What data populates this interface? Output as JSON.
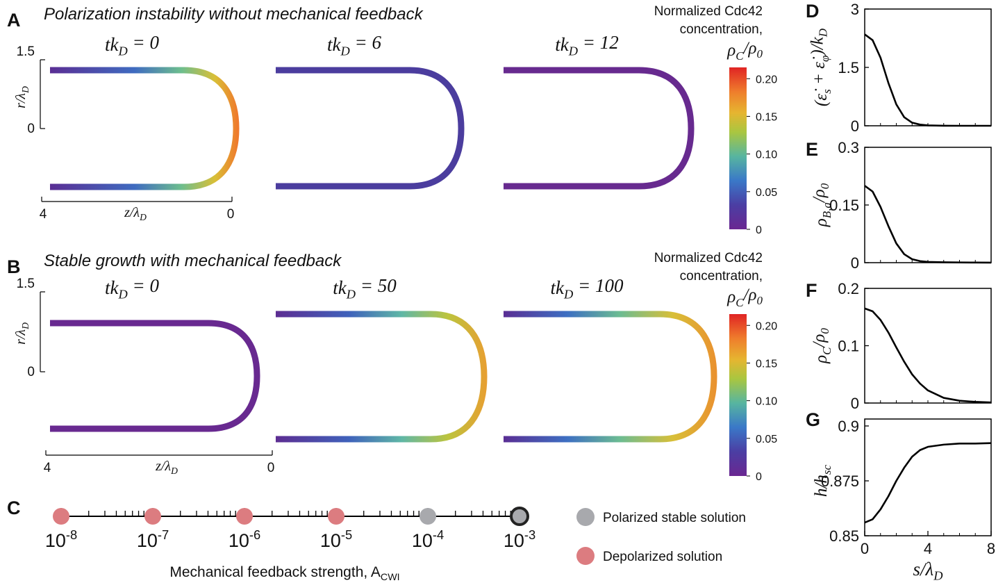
{
  "panel_a": {
    "letter": "A",
    "title": "Polarization instability without mechanical feedback",
    "snapshots": [
      [
        "tk",
        "D",
        " = 0"
      ],
      [
        "tk",
        "D",
        " = 6"
      ],
      [
        "tk",
        "D",
        " = 12"
      ]
    ],
    "r_label": [
      "r/λ",
      "D"
    ],
    "r_ticks": [
      1.5,
      0
    ],
    "z_label": [
      "z/λ",
      "D"
    ],
    "z_ticks": [
      4,
      0
    ],
    "colorbar": {
      "title": [
        "Normalized Cdc42",
        "concentration,"
      ],
      "label": [
        "ρ",
        "C",
        "/ρ",
        "0"
      ],
      "clim": [
        0,
        0.215
      ],
      "ticks": [
        0,
        0.05,
        {
          "value": 0.1,
          "label": "0.10"
        },
        0.15,
        {
          "value": 0.2,
          "label": "0.20"
        }
      ]
    }
  },
  "panel_b": {
    "letter": "B",
    "title": "Stable growth with mechanical feedback",
    "snapshots": [
      [
        "tk",
        "D",
        " = 0"
      ],
      [
        "tk",
        "D",
        " = 50"
      ],
      [
        "tk",
        "D",
        " = 100"
      ]
    ],
    "r_label": [
      "r/λ",
      "D"
    ],
    "r_ticks": [
      1.5,
      0
    ],
    "z_label": [
      "z/λ",
      "D"
    ],
    "z_ticks": [
      4,
      0
    ],
    "colorbar": {
      "title": [
        "Normalized Cdc42",
        "concentration,"
      ],
      "label": [
        "ρ",
        "C",
        "/ρ",
        "0"
      ],
      "clim": [
        0,
        0.215
      ],
      "ticks": [
        0,
        0.05,
        {
          "value": 0.1,
          "label": "0.10"
        },
        0.15,
        {
          "value": 0.2,
          "label": "0.20"
        }
      ]
    }
  },
  "chart_data": [
    {
      "type": "scatter",
      "letter": "C",
      "xlabel": [
        "Mechanical feedback strength, A",
        "CWI"
      ],
      "log_x": true,
      "xlim": [
        1e-08,
        0.001
      ],
      "xticks": [
        {
          "value": 1e-08,
          "label": [
            "10",
            "-8"
          ]
        },
        {
          "value": 1e-07,
          "label": [
            "10",
            "-7"
          ]
        },
        {
          "value": 1e-06,
          "label": [
            "10",
            "-6"
          ]
        },
        {
          "value": 1e-05,
          "label": [
            "10",
            "-5"
          ]
        },
        {
          "value": 0.0001,
          "label": [
            "10",
            "-4"
          ]
        },
        {
          "value": 0.001,
          "label": [
            "10",
            "-3"
          ]
        }
      ],
      "series": [
        {
          "name": "Polarized stable solution",
          "color": "#a8a9ad",
          "x": [
            0.0001,
            0.001
          ]
        },
        {
          "name": "Depolarized solution",
          "color": "#dc7c80",
          "x": [
            1e-08,
            1e-07,
            1e-06,
            1e-05
          ]
        }
      ]
    },
    {
      "type": "line",
      "letter": "D",
      "ylabel": [
        "(ε̇",
        "s",
        " + ε̇",
        "φ",
        ")/k",
        "D"
      ],
      "color": "#000000",
      "x": [
        0,
        0.5,
        1,
        1.5,
        2,
        2.5,
        3,
        3.5,
        4,
        5,
        6,
        7,
        8
      ],
      "values": [
        2.35,
        2.2,
        1.75,
        1.1,
        0.55,
        0.22,
        0.08,
        0.03,
        0.01,
        0.002,
        0,
        0,
        0
      ],
      "xlim": [
        0,
        8
      ],
      "ylim": [
        0,
        3
      ],
      "yticks": [
        0,
        1.5,
        3
      ]
    },
    {
      "type": "line",
      "letter": "E",
      "ylabel": [
        "ρ",
        "B,a",
        "/ρ",
        "0"
      ],
      "color": "#000000",
      "x": [
        0,
        0.5,
        1,
        1.5,
        2,
        2.5,
        3,
        3.5,
        4,
        5,
        6,
        7,
        8
      ],
      "values": [
        0.2,
        0.185,
        0.145,
        0.095,
        0.05,
        0.022,
        0.009,
        0.004,
        0.002,
        0.001,
        0.0005,
        0.0003,
        0.0002
      ],
      "xlim": [
        0,
        8
      ],
      "ylim": [
        0,
        0.3
      ],
      "yticks": [
        0,
        0.15,
        0.3
      ]
    },
    {
      "type": "line",
      "letter": "F",
      "ylabel": [
        "ρ",
        "C",
        "/ρ",
        "0"
      ],
      "color": "#000000",
      "x": [
        0,
        0.5,
        1,
        1.5,
        2,
        2.5,
        3,
        3.5,
        4,
        5,
        6,
        7,
        8
      ],
      "values": [
        0.165,
        0.16,
        0.145,
        0.123,
        0.097,
        0.072,
        0.05,
        0.034,
        0.022,
        0.009,
        0.004,
        0.002,
        0.001
      ],
      "xlim": [
        0,
        8
      ],
      "ylim": [
        0,
        0.2
      ],
      "yticks": [
        0,
        0.1,
        0.2
      ]
    },
    {
      "type": "line",
      "letter": "G",
      "ylabel": [
        "h/h",
        "sc"
      ],
      "xlabel": [
        "s/λ",
        "D"
      ],
      "color": "#000000",
      "x": [
        0,
        0.5,
        1,
        1.5,
        2,
        2.5,
        3,
        3.5,
        4,
        5,
        6,
        7,
        8
      ],
      "values": [
        0.856,
        0.8575,
        0.862,
        0.868,
        0.875,
        0.881,
        0.886,
        0.889,
        0.8905,
        0.8915,
        0.892,
        0.892,
        0.8922
      ],
      "xlim": [
        0,
        8
      ],
      "ylim": [
        0.85,
        0.9
      ],
      "xticks": [
        0,
        4,
        8
      ],
      "yticks": [
        0.85,
        0.875,
        0.9
      ]
    }
  ]
}
